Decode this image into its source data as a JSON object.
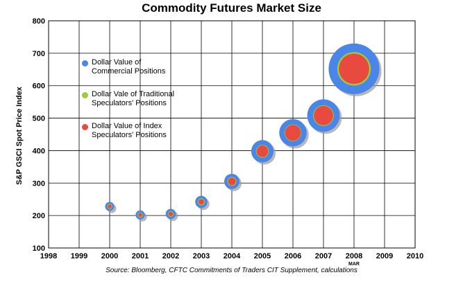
{
  "chart_data": {
    "type": "bubble",
    "title": "Commodity Futures Market Size",
    "ylabel": "S&P GSCI Spot Price Index",
    "xlabel": "",
    "xlim": [
      1998,
      2010
    ],
    "ylim": [
      100,
      800
    ],
    "x_ticks": [
      "1998",
      "1999",
      "2000",
      "2001",
      "2002",
      "2003",
      "2004",
      "2005",
      "2006",
      "2007",
      "2008",
      "2009",
      "2010"
    ],
    "x_tick_sublabel": {
      "year": "2008",
      "text": "MAR"
    },
    "y_ticks": [
      100,
      200,
      300,
      400,
      500,
      600,
      700,
      800
    ],
    "grid": true,
    "legend": [
      {
        "name": "Dollar Value of Commercial Positions",
        "lines": [
          "Dollar Value of",
          "Commercial Positions"
        ],
        "color": "#4a86e8"
      },
      {
        "name": "Dollar Vale of Traditional Speculators' Positions",
        "lines": [
          "Dollar Vale of Traditional",
          "Speculators' Positions"
        ],
        "color": "#9ccc3a"
      },
      {
        "name": "Dollar Value of Index Speculators' Positions",
        "lines": [
          "Dollar Value of Index",
          "Speculators' Positions"
        ],
        "color": "#e84a3f"
      }
    ],
    "points": [
      {
        "x": 2000,
        "y": 228,
        "commercial": 9,
        "traditional": 4,
        "index": 2.8
      },
      {
        "x": 2001,
        "y": 202,
        "commercial": 9,
        "traditional": 4,
        "index": 2.8
      },
      {
        "x": 2002,
        "y": 205,
        "commercial": 10,
        "traditional": 4.5,
        "index": 3.2
      },
      {
        "x": 2003,
        "y": 242,
        "commercial": 12,
        "traditional": 5.5,
        "index": 4
      },
      {
        "x": 2004,
        "y": 305,
        "commercial": 15,
        "traditional": 7,
        "index": 5.5
      },
      {
        "x": 2005,
        "y": 398,
        "commercial": 22,
        "traditional": 10,
        "index": 8.5
      },
      {
        "x": 2006,
        "y": 455,
        "commercial": 27,
        "traditional": 13,
        "index": 11.5
      },
      {
        "x": 2007,
        "y": 508,
        "commercial": 32,
        "traditional": 16,
        "index": 14
      },
      {
        "x": 2008,
        "y": 652,
        "commercial": 50,
        "traditional": 26,
        "index": 22
      }
    ]
  },
  "source": "Source: Bloomberg, CFTC Commitments of Traders CIT Supplement, calculations",
  "colors": {
    "commercial": "#4a86e8",
    "traditional": "#9ccc3a",
    "index": "#e84a3f",
    "shadow": "#9a9a9a"
  }
}
